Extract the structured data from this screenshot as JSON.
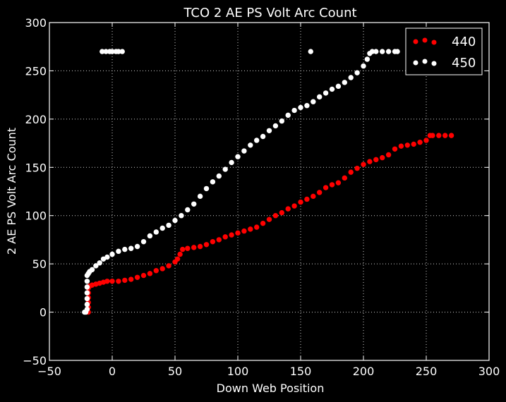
{
  "chart_data": {
    "type": "scatter",
    "title": "TCO 2 AE PS Volt Arc Count",
    "xlabel": "Down Web Position",
    "ylabel": "2 AE PS Volt Arc Count",
    "xlim": [
      -50,
      300
    ],
    "ylim": [
      -50,
      300
    ],
    "x_ticks": [
      -50,
      0,
      50,
      100,
      150,
      200,
      250,
      300
    ],
    "y_ticks": [
      -50,
      0,
      50,
      100,
      150,
      200,
      250,
      300
    ],
    "x_tick_labels": [
      "−50",
      "0",
      "50",
      "100",
      "150",
      "200",
      "250",
      "300"
    ],
    "y_tick_labels": [
      "−50",
      "0",
      "50",
      "100",
      "150",
      "200",
      "250",
      "300"
    ],
    "grid": true,
    "legend_position": "top-right",
    "colors": {
      "background": "#000000",
      "axes": "#ffffff",
      "grid": "#cfcfcf"
    },
    "series": [
      {
        "name": "440",
        "color": "#ff0000",
        "points": [
          [
            -19,
            0
          ],
          [
            -19,
            5
          ],
          [
            -19,
            10
          ],
          [
            -19,
            15
          ],
          [
            -19,
            20
          ],
          [
            -19,
            25
          ],
          [
            -18,
            27
          ],
          [
            -16,
            28
          ],
          [
            -13,
            29
          ],
          [
            -10,
            30
          ],
          [
            -7,
            31
          ],
          [
            -4,
            32
          ],
          [
            0,
            32
          ],
          [
            5,
            32
          ],
          [
            10,
            33
          ],
          [
            15,
            34
          ],
          [
            20,
            36
          ],
          [
            25,
            38
          ],
          [
            30,
            40
          ],
          [
            35,
            43
          ],
          [
            40,
            45
          ],
          [
            45,
            48
          ],
          [
            50,
            52
          ],
          [
            52,
            55
          ],
          [
            54,
            60
          ],
          [
            56,
            65
          ],
          [
            60,
            66
          ],
          [
            65,
            67
          ],
          [
            70,
            68
          ],
          [
            75,
            70
          ],
          [
            80,
            73
          ],
          [
            85,
            75
          ],
          [
            90,
            78
          ],
          [
            95,
            80
          ],
          [
            100,
            82
          ],
          [
            105,
            84
          ],
          [
            110,
            86
          ],
          [
            115,
            88
          ],
          [
            120,
            92
          ],
          [
            125,
            96
          ],
          [
            130,
            100
          ],
          [
            135,
            103
          ],
          [
            140,
            107
          ],
          [
            145,
            110
          ],
          [
            150,
            114
          ],
          [
            155,
            117
          ],
          [
            160,
            120
          ],
          [
            165,
            124
          ],
          [
            170,
            129
          ],
          [
            175,
            132
          ],
          [
            180,
            134
          ],
          [
            185,
            139
          ],
          [
            190,
            145
          ],
          [
            195,
            149
          ],
          [
            200,
            153
          ],
          [
            205,
            156
          ],
          [
            210,
            158
          ],
          [
            215,
            160
          ],
          [
            220,
            163
          ],
          [
            225,
            169
          ],
          [
            230,
            172
          ],
          [
            235,
            173
          ],
          [
            240,
            174
          ],
          [
            245,
            176
          ],
          [
            250,
            178
          ],
          [
            253,
            183
          ],
          [
            255,
            183
          ],
          [
            260,
            183
          ],
          [
            265,
            183
          ],
          [
            270,
            183
          ]
        ]
      },
      {
        "name": "450",
        "color": "#ffffff",
        "points": [
          [
            -22,
            0
          ],
          [
            -21,
            0
          ],
          [
            -20,
            3
          ],
          [
            -20,
            8
          ],
          [
            -20,
            14
          ],
          [
            -20,
            20
          ],
          [
            -20,
            26
          ],
          [
            -20,
            32
          ],
          [
            -20,
            38
          ],
          [
            -19,
            40
          ],
          [
            -18,
            42
          ],
          [
            -16,
            44
          ],
          [
            -13,
            48
          ],
          [
            -10,
            51
          ],
          [
            -7,
            55
          ],
          [
            -4,
            57
          ],
          [
            0,
            60
          ],
          [
            5,
            63
          ],
          [
            10,
            65
          ],
          [
            15,
            66
          ],
          [
            20,
            68
          ],
          [
            25,
            73
          ],
          [
            30,
            79
          ],
          [
            35,
            83
          ],
          [
            40,
            87
          ],
          [
            45,
            90
          ],
          [
            50,
            95
          ],
          [
            55,
            100
          ],
          [
            60,
            106
          ],
          [
            65,
            112
          ],
          [
            70,
            120
          ],
          [
            75,
            128
          ],
          [
            80,
            135
          ],
          [
            85,
            141
          ],
          [
            90,
            148
          ],
          [
            95,
            155
          ],
          [
            100,
            161
          ],
          [
            105,
            167
          ],
          [
            110,
            173
          ],
          [
            115,
            178
          ],
          [
            120,
            182
          ],
          [
            125,
            188
          ],
          [
            130,
            193
          ],
          [
            135,
            198
          ],
          [
            140,
            204
          ],
          [
            145,
            209
          ],
          [
            150,
            212
          ],
          [
            155,
            214
          ],
          [
            160,
            218
          ],
          [
            165,
            223
          ],
          [
            170,
            227
          ],
          [
            175,
            231
          ],
          [
            180,
            234
          ],
          [
            185,
            238
          ],
          [
            190,
            243
          ],
          [
            195,
            248
          ],
          [
            200,
            255
          ],
          [
            203,
            262
          ],
          [
            205,
            268
          ],
          [
            207,
            270
          ],
          [
            210,
            270
          ],
          [
            215,
            270
          ],
          [
            220,
            270
          ],
          [
            225,
            270
          ],
          [
            227,
            270
          ],
          [
            -8,
            270
          ],
          [
            -5,
            270
          ],
          [
            -2,
            270
          ],
          [
            0,
            270
          ],
          [
            3,
            270
          ],
          [
            5,
            270
          ],
          [
            8,
            270
          ],
          [
            158,
            270
          ]
        ]
      }
    ]
  }
}
